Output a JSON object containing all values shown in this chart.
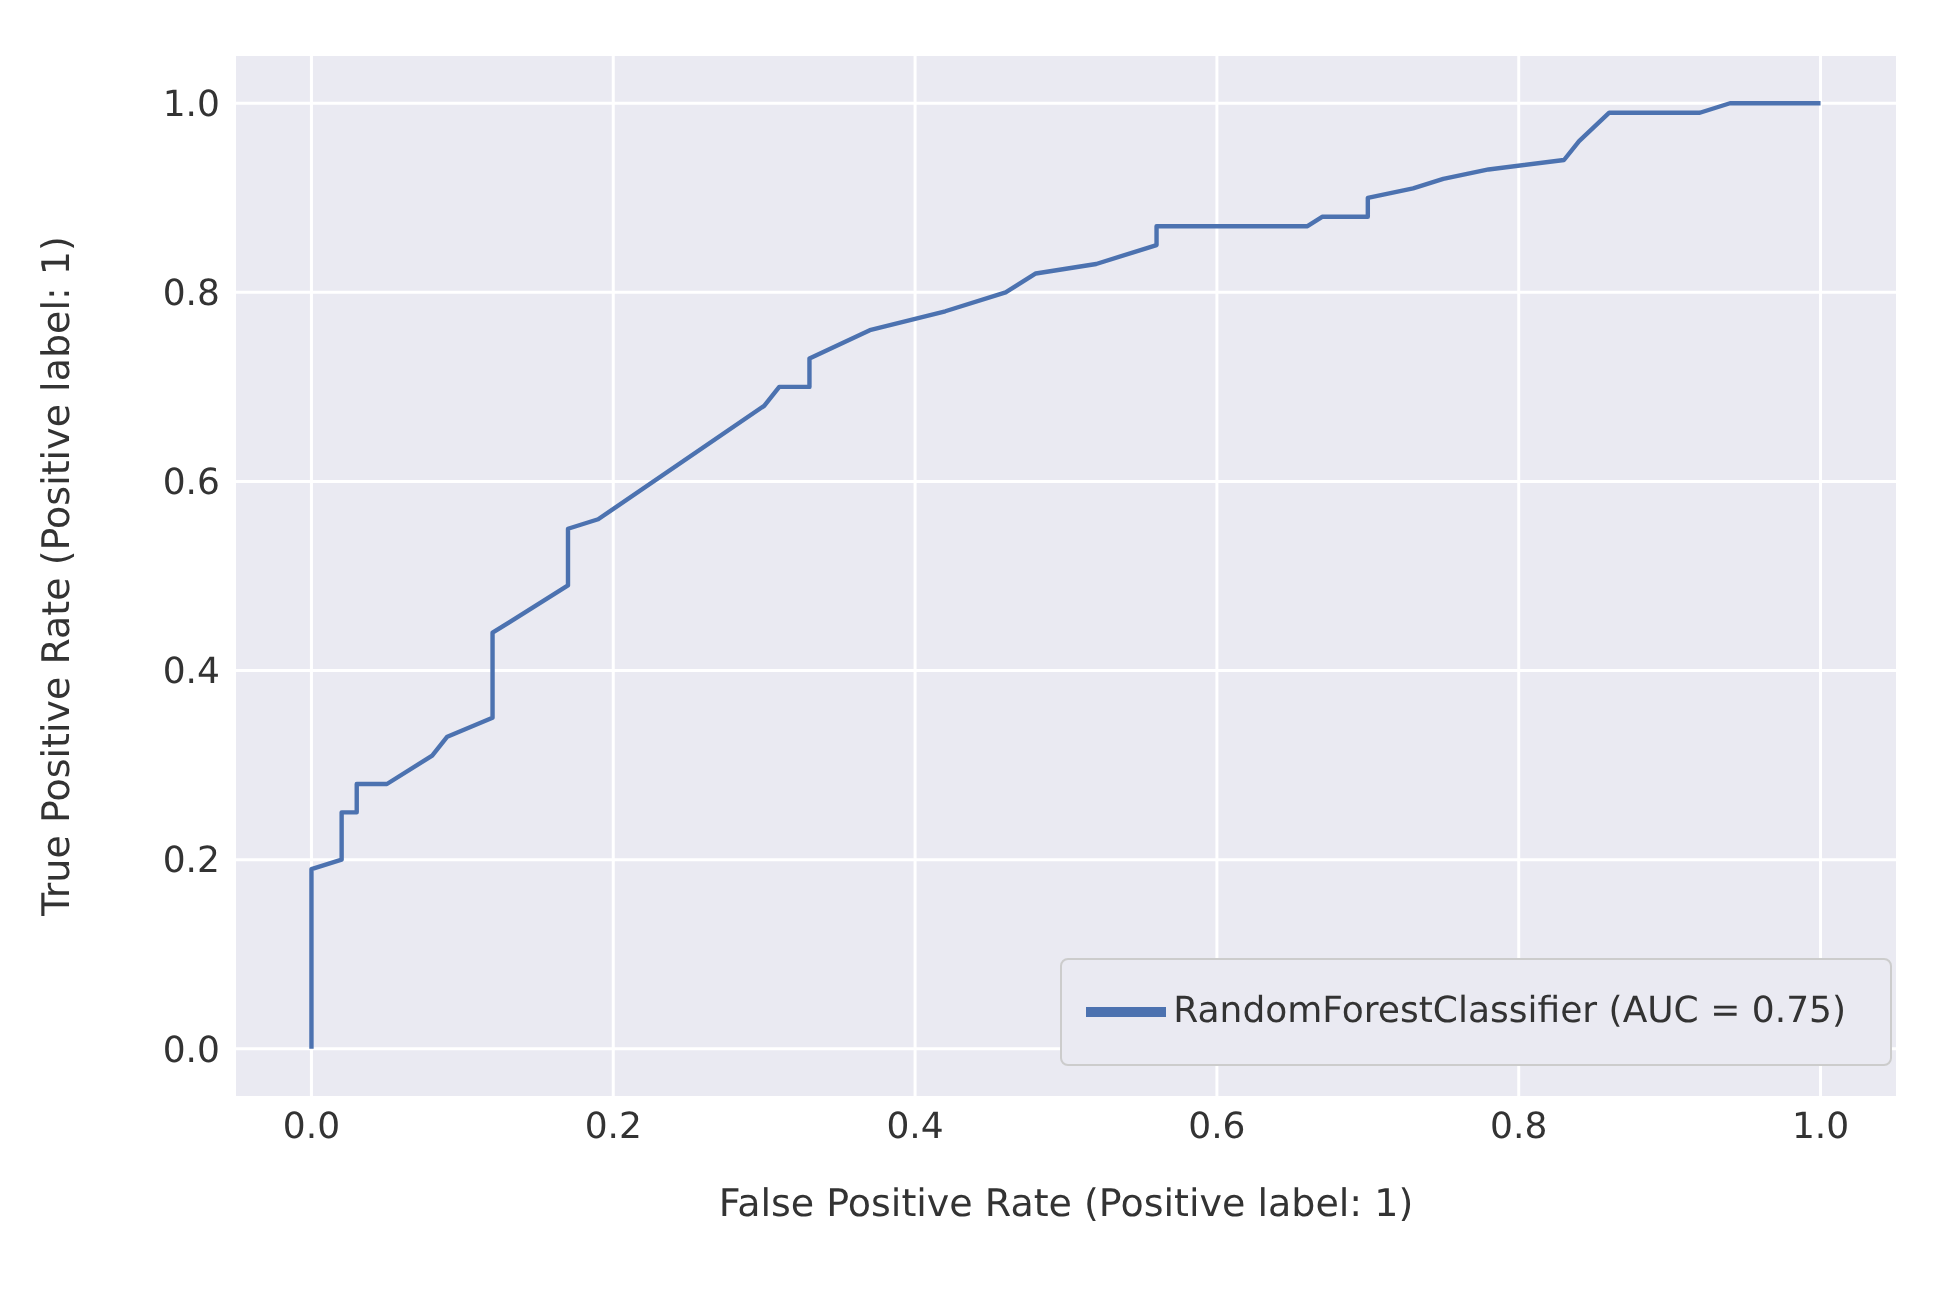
{
  "chart_data": {
    "type": "line",
    "xlabel": "False Positive Rate (Positive label: 1)",
    "ylabel": "True Positive Rate (Positive label: 1)",
    "series": [
      {
        "name": "RandomForestClassifier (AUC = 0.75)",
        "color": "#4c72b0",
        "x": [
          0,
          0,
          0.02,
          0.02,
          0.03,
          0.03,
          0.05,
          0.08,
          0.09,
          0.12,
          0.12,
          0.17,
          0.17,
          0.19,
          0.3,
          0.31,
          0.33,
          0.33,
          0.37,
          0.42,
          0.46,
          0.48,
          0.52,
          0.56,
          0.56,
          0.66,
          0.67,
          0.7,
          0.7,
          0.73,
          0.75,
          0.78,
          0.83,
          0.84,
          0.86,
          0.92,
          0.94,
          1.0
        ],
        "values": [
          0,
          0.19,
          0.2,
          0.25,
          0.25,
          0.28,
          0.28,
          0.31,
          0.33,
          0.35,
          0.44,
          0.49,
          0.55,
          0.56,
          0.68,
          0.7,
          0.7,
          0.73,
          0.76,
          0.78,
          0.8,
          0.82,
          0.83,
          0.85,
          0.87,
          0.87,
          0.88,
          0.88,
          0.9,
          0.91,
          0.92,
          0.93,
          0.94,
          0.96,
          0.99,
          0.99,
          1.0,
          1.0
        ]
      }
    ],
    "xlim": [
      -0.05,
      1.05
    ],
    "ylim": [
      -0.05,
      1.05
    ],
    "xticks": [
      {
        "value": 0,
        "label": "0.0"
      },
      0.2,
      0.4,
      0.6,
      0.8,
      {
        "value": 1,
        "label": "1.0"
      }
    ],
    "yticks": [
      {
        "value": 0,
        "label": "0.0"
      },
      0.2,
      0.4,
      0.6,
      0.8,
      {
        "value": 1,
        "label": "1.0"
      }
    ],
    "grid": true,
    "legend": "bottom right",
    "line_style": "solid",
    "marker": "none"
  }
}
